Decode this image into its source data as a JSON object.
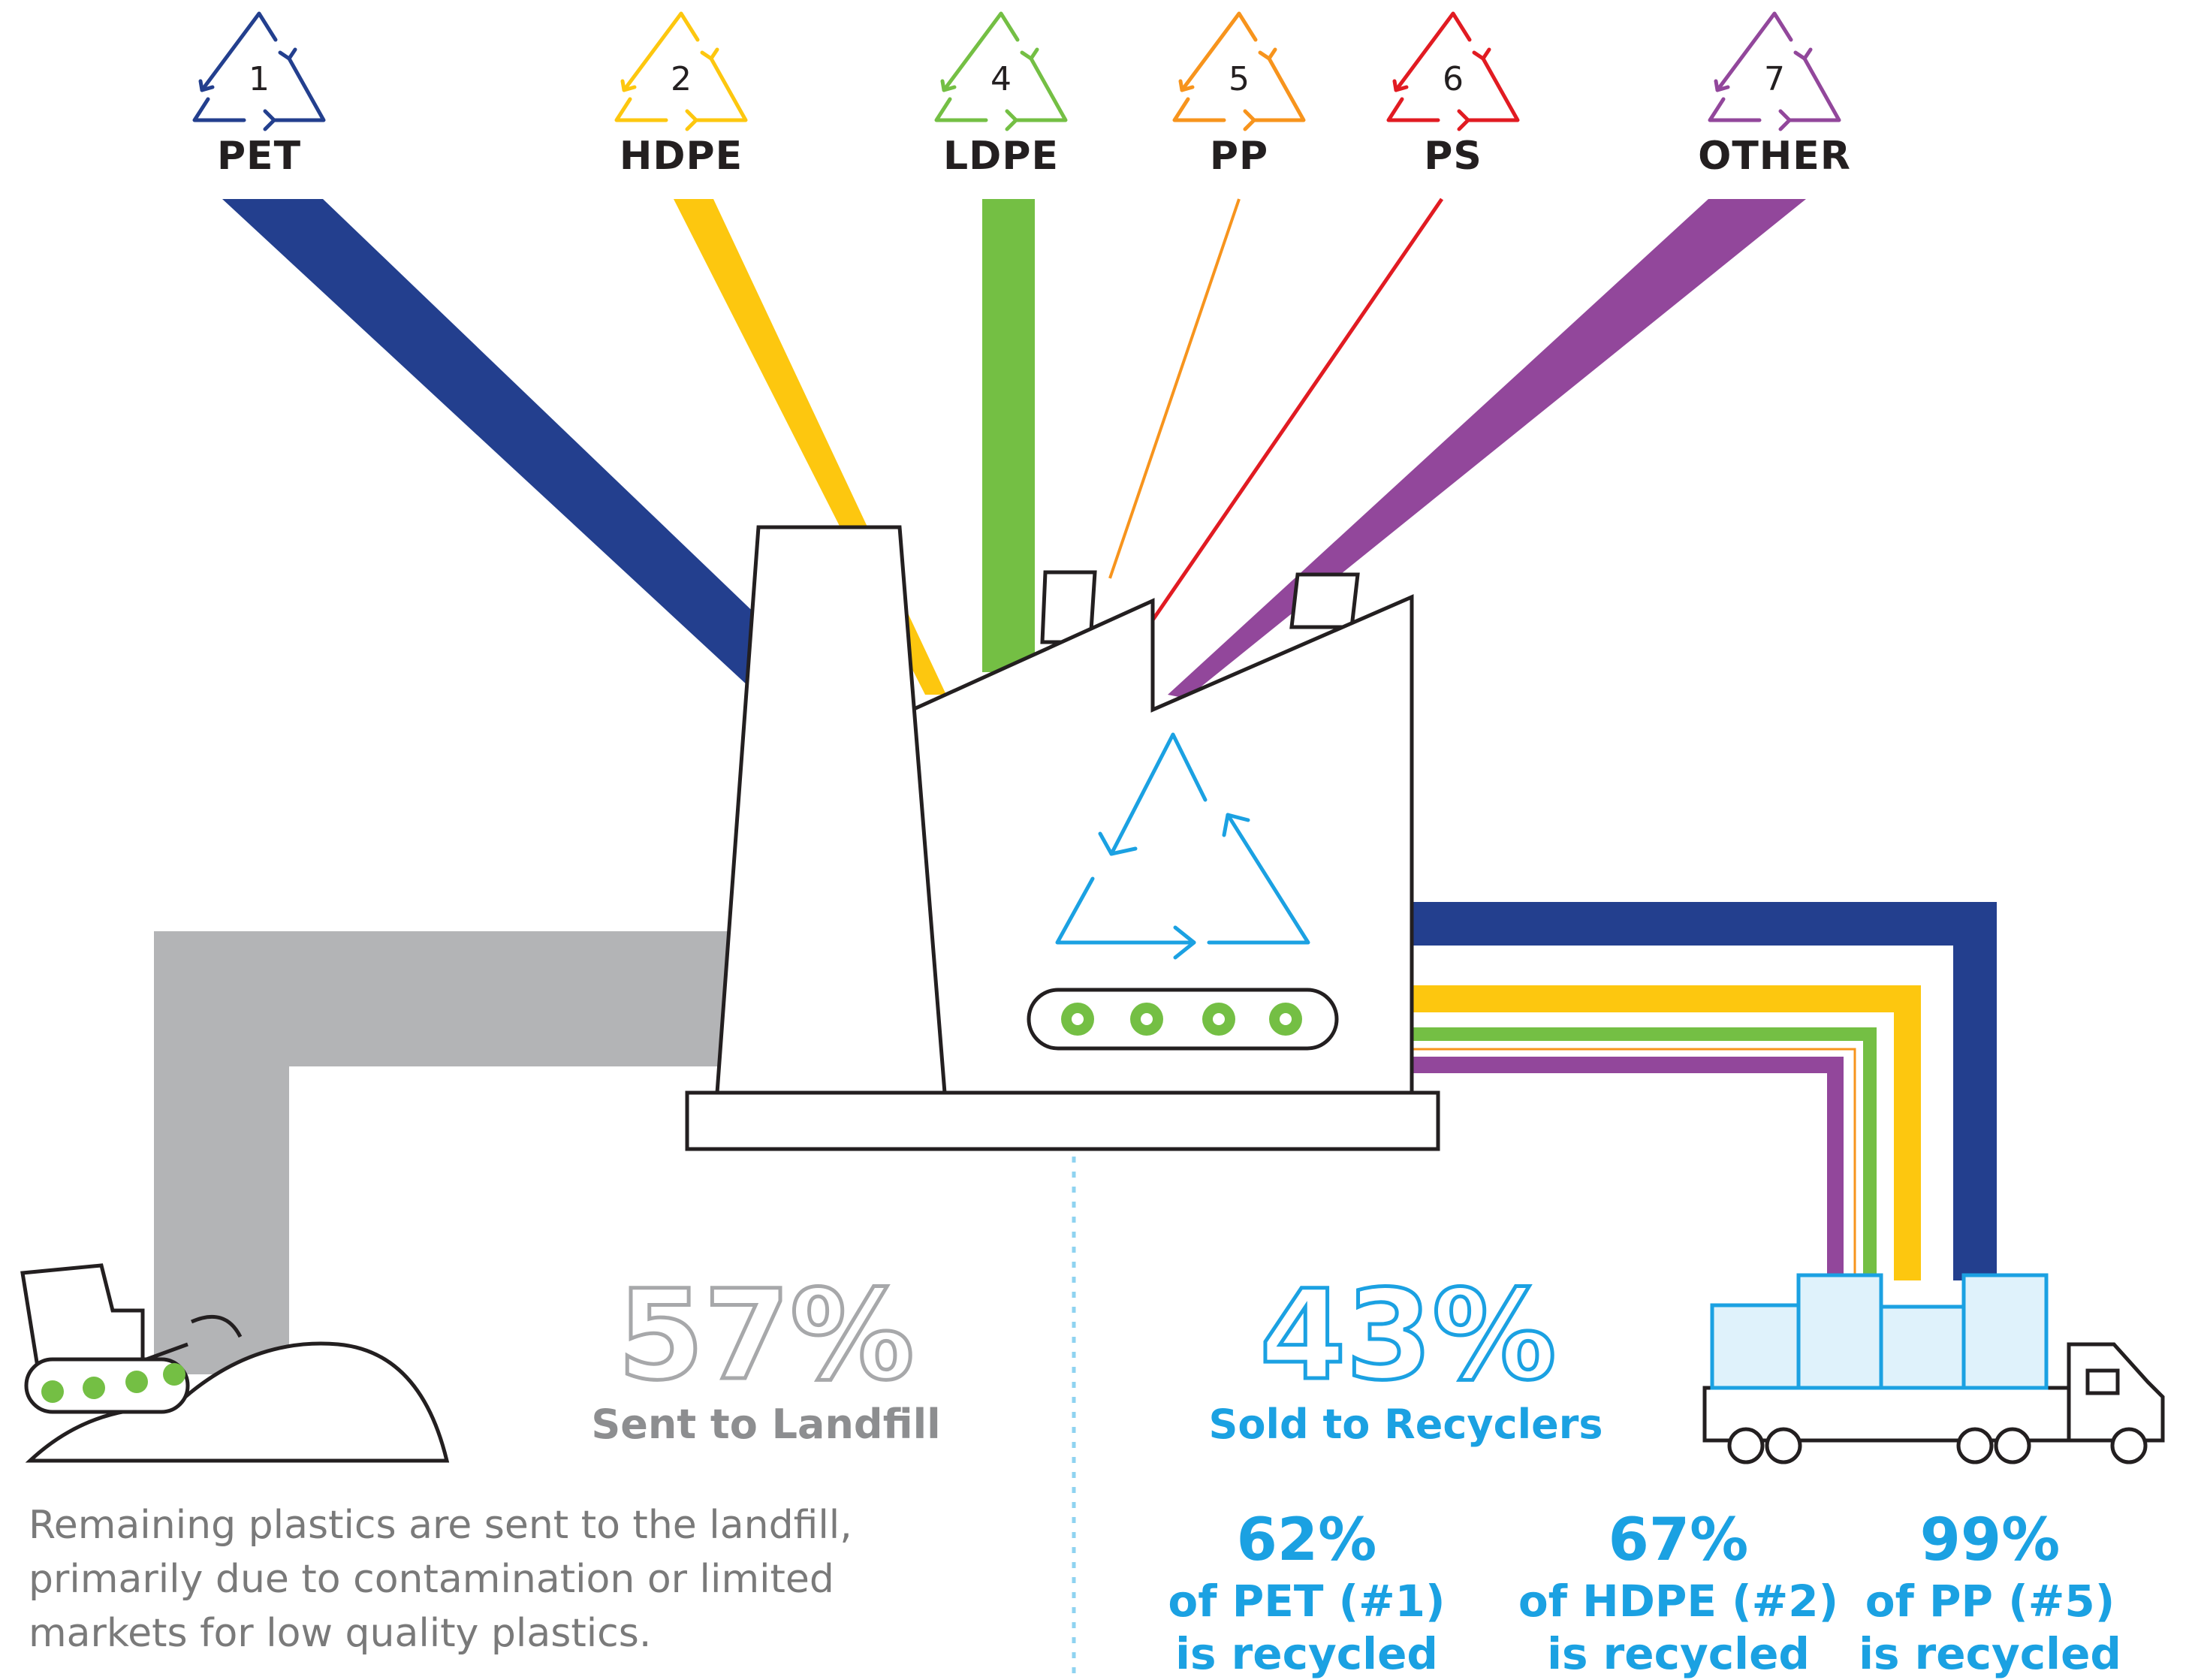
{
  "plastic_codes": [
    {
      "number": "1",
      "label": "PET",
      "color": "#233f8e"
    },
    {
      "number": "2",
      "label": "HDPE",
      "color": "#fdc70f"
    },
    {
      "number": "4",
      "label": "LDPE",
      "color": "#74bf44"
    },
    {
      "number": "5",
      "label": "PP",
      "color": "#f7941d"
    },
    {
      "number": "6",
      "label": "PS",
      "color": "#e11b22"
    },
    {
      "number": "7",
      "label": "OTHER",
      "color": "#92479b"
    }
  ],
  "landfill": {
    "percent": "57%",
    "label": "Sent to Landfill",
    "description_lines": [
      "Remaining plastics are sent to the landfill,",
      "primarily due to contamination or limited",
      "markets for low quality plastics."
    ],
    "color": "#b3b4b6"
  },
  "recyclers": {
    "percent": "43%",
    "label": "Sold to Recyclers",
    "color": "#1ba1e2",
    "stats": [
      {
        "percent": "62%",
        "line1": "of PET (#1)",
        "line2": "is recycled"
      },
      {
        "percent": "67%",
        "line1": "of HDPE (#2)",
        "line2": "is recycled"
      },
      {
        "percent": "99%",
        "line1": "of PP (#5)",
        "line2": "is recycled"
      }
    ]
  },
  "icons": [
    "recycle-triangle-icon",
    "factory-icon",
    "conveyor-gear-icon",
    "bulldozer-icon",
    "truck-icon",
    "plastic-bale-icon"
  ]
}
